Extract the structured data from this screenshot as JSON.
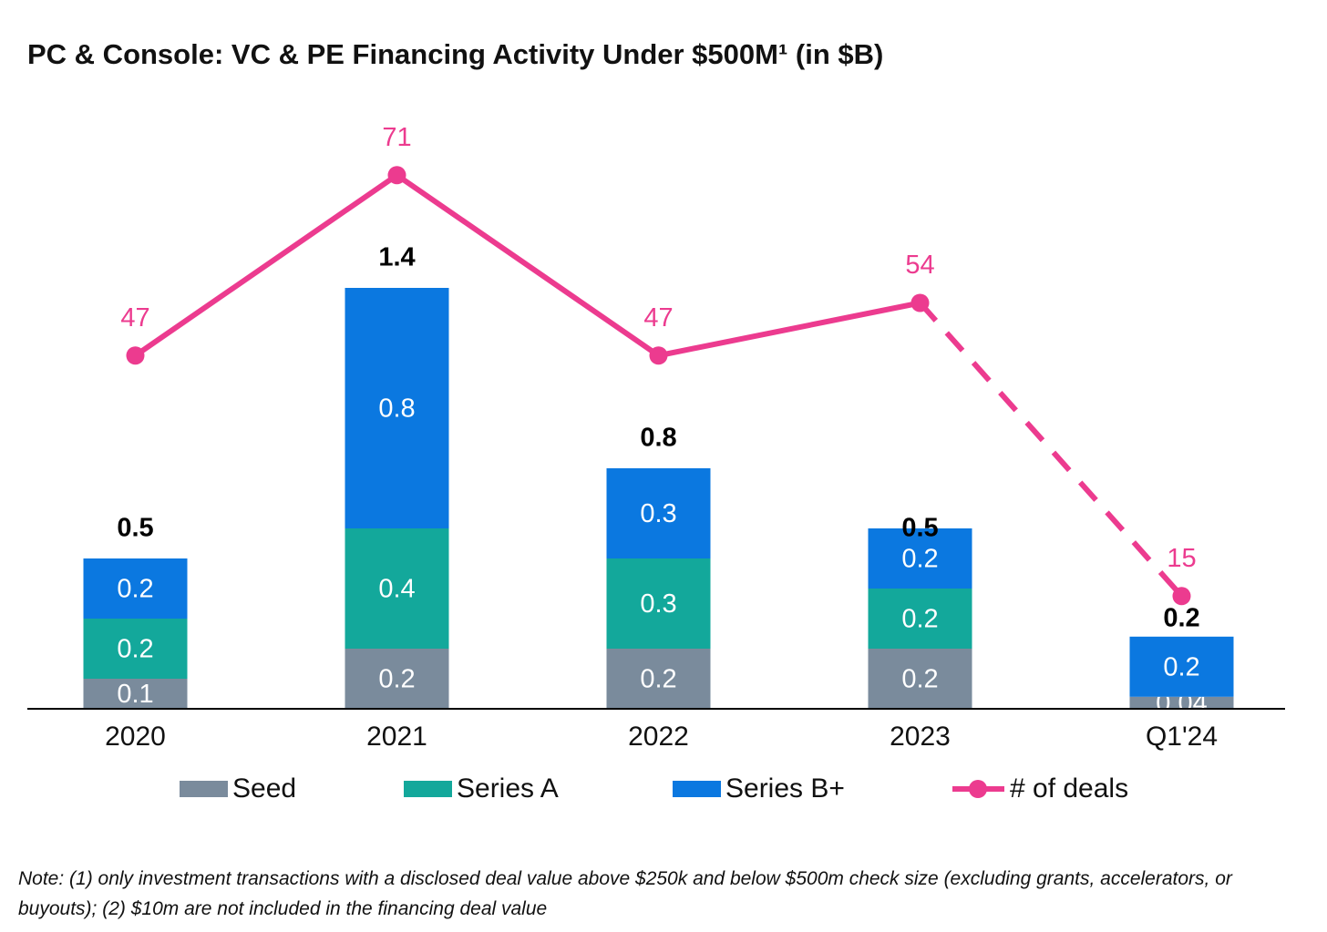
{
  "chart_data": {
    "type": "bar",
    "title": "PC & Console: VC & PE Financing Activity Under $500M¹ (in $B)",
    "categories": [
      "2020",
      "2021",
      "2022",
      "2023",
      "Q1'24"
    ],
    "series": [
      {
        "name": "Seed",
        "color": "#7a8b9c",
        "values": [
          0.1,
          0.2,
          0.2,
          0.2,
          0.04
        ]
      },
      {
        "name": "Series A",
        "color": "#13a89b",
        "values": [
          0.2,
          0.4,
          0.3,
          0.2,
          null
        ]
      },
      {
        "name": "Series B+",
        "color": "#0b78e0",
        "values": [
          0.2,
          0.8,
          0.3,
          0.2,
          0.2
        ]
      },
      {
        "name": "# of deals",
        "color": "#ec3b8f",
        "type": "line",
        "axis": "y2",
        "dashed_from_index": 3,
        "values": [
          47,
          71,
          47,
          54,
          15
        ]
      }
    ],
    "totals": [
      0.5,
      1.4,
      0.8,
      0.5,
      0.2
    ],
    "ylim": [
      0,
      2
    ],
    "y2lim": [
      0,
      80
    ],
    "legend": "bottom",
    "note": "Note: (1) only investment transactions with a disclosed deal value above $250k and below $500m check size (excluding grants, accelerators, or buyouts); (2) $10m are not included in the financing deal value"
  }
}
